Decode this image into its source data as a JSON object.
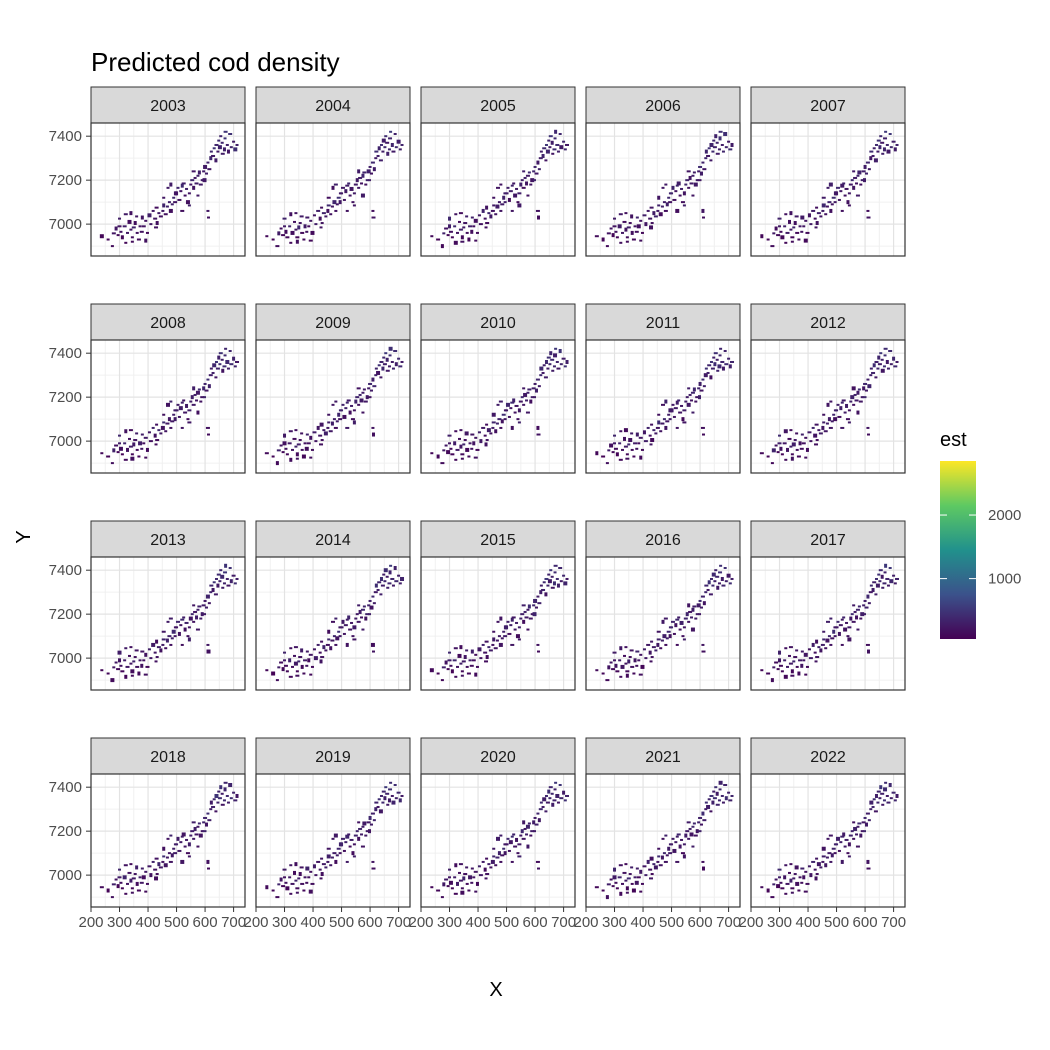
{
  "chart_data": {
    "type": "heatmap",
    "title": "Predicted cod density",
    "xlabel": "X",
    "ylabel": "Y",
    "xlim": [
      200,
      740
    ],
    "ylim": [
      6855,
      7460
    ],
    "x_ticks": [
      200,
      300,
      400,
      500,
      600,
      700
    ],
    "x_tick_labels": [
      "200",
      "300",
      "400",
      "500",
      "600",
      "700"
    ],
    "y_ticks": [
      7000,
      7200,
      7400
    ],
    "y_tick_labels": [
      "7000",
      "7200",
      "7400"
    ],
    "facets": [
      "2003",
      "2004",
      "2005",
      "2006",
      "2007",
      "2008",
      "2009",
      "2010",
      "2011",
      "2012",
      "2013",
      "2014",
      "2015",
      "2016",
      "2017",
      "2018",
      "2019",
      "2020",
      "2021",
      "2022"
    ],
    "facet_layout": {
      "columns": 5,
      "rows": 4
    },
    "legend": {
      "title": "est",
      "placement": "right",
      "breaks": [
        1000,
        2000
      ],
      "break_labels": [
        "1000",
        "2000"
      ],
      "range": [
        50,
        2850
      ],
      "palette": "viridis",
      "colors": [
        "#440154",
        "#3b528b",
        "#21918c",
        "#5ec962",
        "#fde725"
      ]
    },
    "grid": true,
    "points": [
      [
        238,
        6945
      ],
      [
        260,
        6930
      ],
      [
        275,
        6900
      ],
      [
        280,
        6958
      ],
      [
        288,
        6980
      ],
      [
        295,
        6950
      ],
      [
        300,
        6990
      ],
      [
        305,
        6965
      ],
      [
        310,
        6940
      ],
      [
        318,
        6990
      ],
      [
        322,
        6915
      ],
      [
        328,
        6960
      ],
      [
        335,
        7010
      ],
      [
        340,
        6975
      ],
      [
        345,
        6940
      ],
      [
        350,
        6985
      ],
      [
        355,
        7005
      ],
      [
        362,
        6960
      ],
      [
        368,
        6930
      ],
      [
        372,
        6990
      ],
      [
        380,
        7030
      ],
      [
        385,
        6990
      ],
      [
        392,
        7015
      ],
      [
        398,
        6960
      ],
      [
        405,
        7040
      ],
      [
        410,
        7000
      ],
      [
        418,
        7060
      ],
      [
        425,
        7025
      ],
      [
        432,
        7005
      ],
      [
        438,
        7050
      ],
      [
        445,
        7035
      ],
      [
        452,
        7060
      ],
      [
        455,
        7085
      ],
      [
        462,
        7045
      ],
      [
        468,
        7080
      ],
      [
        475,
        7100
      ],
      [
        480,
        7060
      ],
      [
        485,
        7090
      ],
      [
        490,
        7120
      ],
      [
        495,
        7100
      ],
      [
        500,
        7140
      ],
      [
        505,
        7165
      ],
      [
        510,
        7110
      ],
      [
        515,
        7150
      ],
      [
        520,
        7175
      ],
      [
        525,
        7185
      ],
      [
        530,
        7130
      ],
      [
        535,
        7160
      ],
      [
        540,
        7100
      ],
      [
        545,
        7140
      ],
      [
        550,
        7180
      ],
      [
        555,
        7200
      ],
      [
        560,
        7165
      ],
      [
        565,
        7210
      ],
      [
        570,
        7185
      ],
      [
        575,
        7220
      ],
      [
        580,
        7235
      ],
      [
        585,
        7180
      ],
      [
        590,
        7200
      ],
      [
        595,
        7240
      ],
      [
        600,
        7260
      ],
      [
        605,
        7230
      ],
      [
        610,
        7280
      ],
      [
        615,
        7250
      ],
      [
        620,
        7300
      ],
      [
        622,
        7330
      ],
      [
        628,
        7310
      ],
      [
        632,
        7345
      ],
      [
        638,
        7290
      ],
      [
        640,
        7360
      ],
      [
        645,
        7330
      ],
      [
        648,
        7380
      ],
      [
        652,
        7350
      ],
      [
        655,
        7400
      ],
      [
        660,
        7370
      ],
      [
        662,
        7320
      ],
      [
        668,
        7340
      ],
      [
        670,
        7390
      ],
      [
        672,
        7420
      ],
      [
        678,
        7360
      ],
      [
        682,
        7330
      ],
      [
        688,
        7410
      ],
      [
        692,
        7350
      ],
      [
        700,
        7375
      ],
      [
        706,
        7340
      ],
      [
        712,
        7360
      ],
      [
        300,
        7025
      ],
      [
        322,
        7045
      ],
      [
        340,
        7050
      ],
      [
        360,
        7035
      ],
      [
        430,
        7075
      ],
      [
        470,
        7165
      ],
      [
        480,
        7180
      ],
      [
        520,
        7060
      ],
      [
        545,
        7085
      ],
      [
        575,
        7130
      ],
      [
        598,
        7200
      ],
      [
        610,
        7060
      ],
      [
        612,
        7030
      ],
      [
        560,
        7240
      ],
      [
        496,
        7140
      ],
      [
        455,
        7120
      ],
      [
        378,
        6965
      ],
      [
        345,
        6920
      ],
      [
        392,
        6925
      ],
      [
        428,
        6985
      ]
    ],
    "point_values": [
      120,
      90,
      150,
      300,
      210,
      110,
      260,
      180,
      95,
      320,
      140,
      230,
      170,
      280,
      130,
      340,
      200,
      160,
      120,
      260,
      300,
      190,
      220,
      140,
      280,
      250,
      310,
      200,
      180,
      330,
      270,
      240,
      360,
      210,
      290,
      320,
      200,
      260,
      380,
      240,
      300,
      330,
      200,
      270,
      350,
      310,
      220,
      280,
      170,
      260,
      300,
      340,
      210,
      290,
      250,
      320,
      360,
      230,
      270,
      310,
      340,
      280,
      360,
      300,
      320,
      380,
      290,
      400,
      260,
      420,
      340,
      380,
      360,
      440,
      320,
      280,
      380,
      400,
      460,
      340,
      300,
      420,
      360,
      330,
      380,
      300,
      340,
      220,
      180,
      260,
      200,
      240,
      300,
      220,
      280,
      240,
      310,
      200,
      180,
      260,
      300,
      220,
      200,
      180,
      160,
      200
    ]
  }
}
